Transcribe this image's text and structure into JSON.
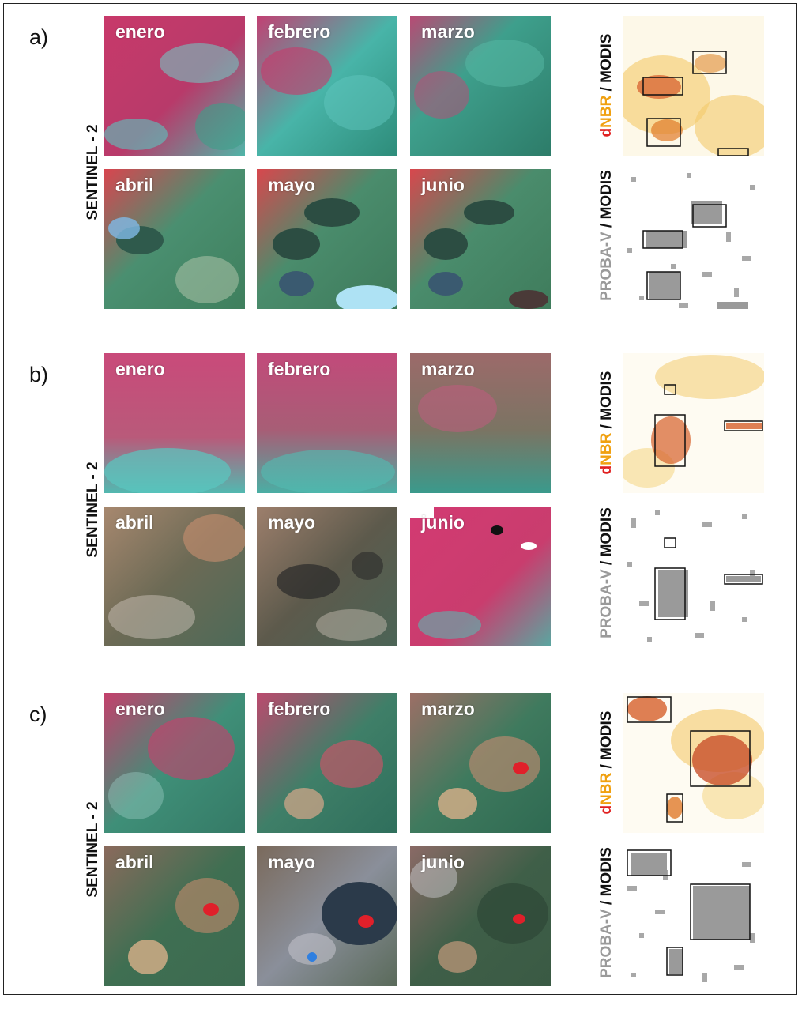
{
  "figure": {
    "panels": [
      {
        "label": "a)",
        "sensor_label": "SENTINEL - 2",
        "months": [
          "enero",
          "febrero",
          "marzo",
          "abril",
          "mayo",
          "junio"
        ],
        "dnbr_label": {
          "part1": "d",
          "part2": "NBR",
          "part3": " / MODIS"
        },
        "probav_label": {
          "part1": "PROBA-V",
          "part2": " / MODIS"
        }
      },
      {
        "label": "b)",
        "sensor_label": "SENTINEL - 2",
        "months": [
          "enero",
          "febrero",
          "marzo",
          "abril",
          "mayo",
          "junio"
        ],
        "dnbr_label": {
          "part1": "d",
          "part2": "NBR",
          "part3": " / MODIS"
        },
        "probav_label": {
          "part1": "PROBA-V",
          "part2": " / MODIS"
        }
      },
      {
        "label": "c)",
        "sensor_label": "SENTINEL - 2",
        "months": [
          "enero",
          "febrero",
          "marzo",
          "abril",
          "mayo",
          "junio"
        ],
        "dnbr_label": {
          "part1": "d",
          "part2": "NBR",
          "part3": " / MODIS"
        },
        "probav_label": {
          "part1": "PROBA-V",
          "part2": " / MODIS"
        }
      }
    ],
    "colors": {
      "dnbr_d": "#e02020",
      "dnbr_nbr": "#f0a010",
      "probav_gray": "#9a9a9a",
      "modis_black": "#111111"
    }
  }
}
